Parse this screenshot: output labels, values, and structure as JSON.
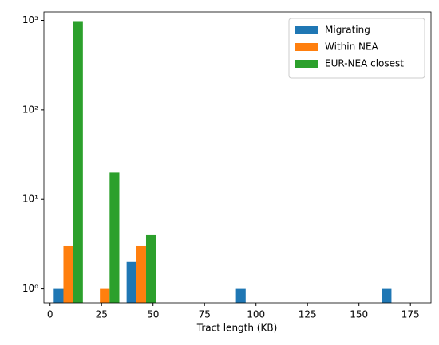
{
  "chart_data": {
    "type": "histogram",
    "xlabel": "Tract length (KB)",
    "bins": [
      0,
      17.7,
      35.4,
      53.1,
      70.8,
      88.5,
      106.2,
      123.9,
      141.6,
      159.3,
      177
    ],
    "series": [
      {
        "name": "Migrating",
        "color": "#1f77b4",
        "values": [
          1,
          0,
          2,
          0,
          0,
          1,
          0,
          0,
          0,
          1
        ]
      },
      {
        "name": "Within NEA",
        "color": "#ff7f0e",
        "values": [
          3,
          1,
          3,
          0,
          0,
          0,
          0,
          0,
          0,
          0
        ]
      },
      {
        "name": "EUR-NEA closest",
        "color": "#2ca02c",
        "values": [
          980,
          20,
          4,
          0,
          0,
          0,
          0,
          0,
          0,
          0
        ]
      }
    ],
    "xlim": [
      -3,
      185
    ],
    "xticks": [
      0,
      25,
      50,
      75,
      100,
      125,
      150,
      175
    ],
    "ylim": [
      0.7,
      1240
    ],
    "yscale": "log",
    "yticks": [
      {
        "value": 1,
        "label": "10⁰"
      },
      {
        "value": 10,
        "label": "10¹"
      },
      {
        "value": 100,
        "label": "10²"
      },
      {
        "value": 1000,
        "label": "10³"
      }
    ],
    "legend": "upper right"
  }
}
